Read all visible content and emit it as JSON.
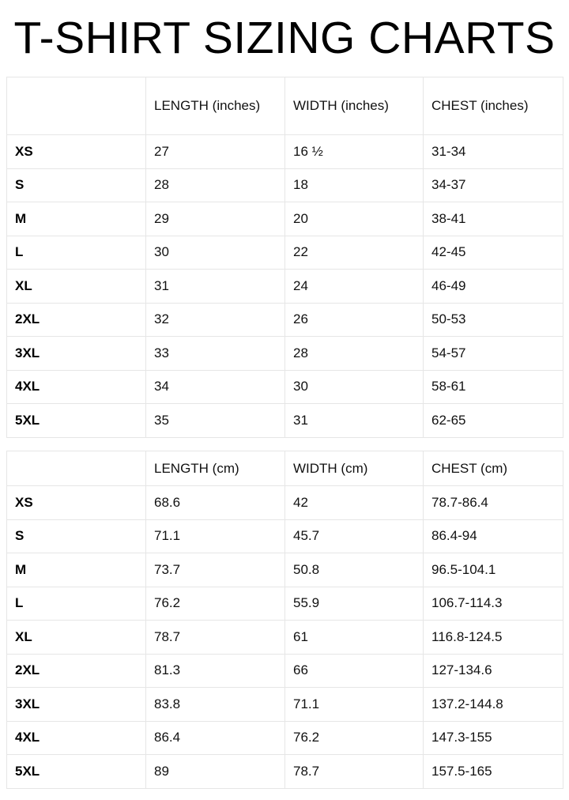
{
  "title": "T-SHIRT SIZING CHARTS",
  "inches_table": {
    "headers": [
      "",
      "LENGTH (inches)",
      "WIDTH (inches)",
      "CHEST (inches)"
    ],
    "rows": [
      [
        "XS",
        "27",
        "16 ½",
        "31-34"
      ],
      [
        "S",
        "28",
        "18",
        "34-37"
      ],
      [
        "M",
        "29",
        "20",
        "38-41"
      ],
      [
        "L",
        "30",
        "22",
        "42-45"
      ],
      [
        "XL",
        "31",
        "24",
        "46-49"
      ],
      [
        "2XL",
        "32",
        "26",
        "50-53"
      ],
      [
        "3XL",
        "33",
        "28",
        "54-57"
      ],
      [
        "4XL",
        "34",
        "30",
        "58-61"
      ],
      [
        "5XL",
        "35",
        "31",
        "62-65"
      ]
    ]
  },
  "cm_table": {
    "headers": [
      "",
      "LENGTH (cm)",
      "WIDTH (cm)",
      "CHEST (cm)"
    ],
    "rows": [
      [
        "XS",
        "68.6",
        "42",
        "78.7-86.4"
      ],
      [
        "S",
        "71.1",
        "45.7",
        "86.4-94"
      ],
      [
        "M",
        "73.7",
        "50.8",
        "96.5-104.1"
      ],
      [
        "L",
        "76.2",
        "55.9",
        "106.7-114.3"
      ],
      [
        "XL",
        "78.7",
        "61",
        "116.8-124.5"
      ],
      [
        "2XL",
        "81.3",
        "66",
        "127-134.6"
      ],
      [
        "3XL",
        "83.8",
        "71.1",
        "137.2-144.8"
      ],
      [
        "4XL",
        "86.4",
        "76.2",
        "147.3-155"
      ],
      [
        "5XL",
        "89",
        "78.7",
        "157.5-165"
      ]
    ]
  }
}
